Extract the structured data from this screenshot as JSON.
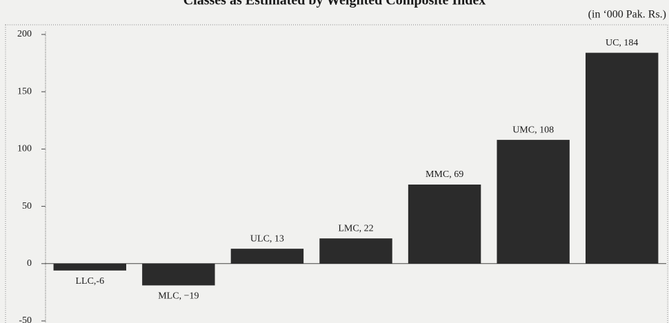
{
  "chart_data": {
    "type": "bar",
    "title": "Classes as Estimated by Weighted Composite Index",
    "subtitle": "(in ‘000 Pak. Rs.)",
    "values": [
      -6,
      -19,
      13,
      22,
      69,
      108,
      184
    ],
    "value_labels": [
      "LLC,-6",
      "MLC, −19",
      "ULC, 13",
      "LMC, 22",
      "MMC, 69",
      "UMC, 108",
      "UC, 184"
    ],
    "color": "#2b2b2b",
    "ylim": [
      -50,
      200
    ],
    "yticks": [
      -50,
      0,
      50,
      100,
      150,
      200
    ],
    "grid": false
  }
}
